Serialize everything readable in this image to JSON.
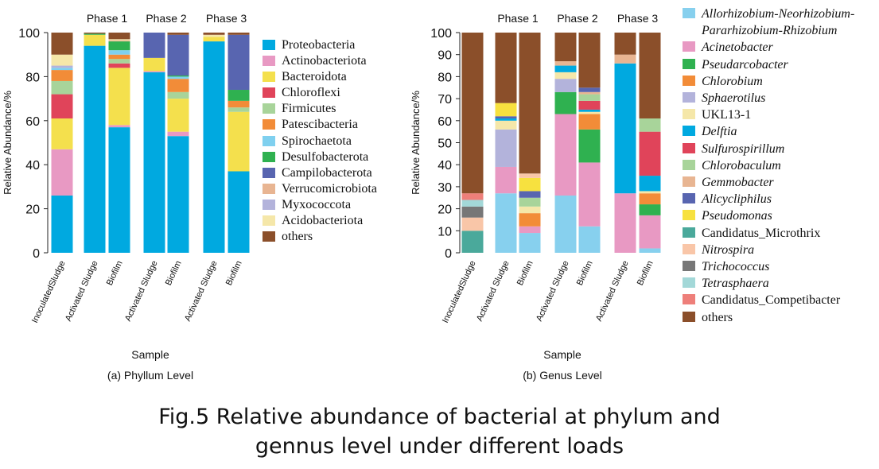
{
  "chart_data": [
    {
      "type": "stacked_bar",
      "subtitle": "(a) Phyllum Level",
      "xlabel": "Sample",
      "ylabel": "Relative Abundance/%",
      "phases": [
        "Phase 1",
        "Phase 2",
        "Phase 3"
      ],
      "categories": [
        "InoculatedSludge",
        "Activated Sludge",
        "Biofilm",
        "Activated Sludge",
        "Biofilm",
        "Activated Sludge",
        "Biofilm"
      ],
      "ylim": [
        0,
        100
      ],
      "yticks": [
        0,
        20,
        40,
        60,
        80,
        100
      ],
      "series": [
        {
          "name": "Proteobacteria",
          "color": "#00a9e0",
          "values": [
            26,
            94,
            57,
            82,
            53,
            96,
            37
          ]
        },
        {
          "name": "Actinobacteriota",
          "color": "#e899c3",
          "values": [
            21,
            0,
            1,
            0.5,
            2,
            0,
            0
          ]
        },
        {
          "name": "Bacteroidota",
          "color": "#f4e04d",
          "values": [
            14,
            5,
            26,
            6,
            15,
            2,
            27
          ]
        },
        {
          "name": "Chloroflexi",
          "color": "#e0445a",
          "values": [
            11,
            0,
            2,
            0,
            0,
            0,
            0
          ]
        },
        {
          "name": "Firmicutes",
          "color": "#a8d49a",
          "values": [
            6,
            0,
            2,
            0,
            3,
            0,
            2
          ]
        },
        {
          "name": "Patescibacteria",
          "color": "#f28c38",
          "values": [
            5,
            0,
            2,
            0,
            6,
            0,
            3
          ]
        },
        {
          "name": "Spirochaetota",
          "color": "#7fd0ef",
          "values": [
            1,
            0,
            2,
            0,
            1,
            0,
            0
          ]
        },
        {
          "name": "Desulfobacterota",
          "color": "#2fb150",
          "values": [
            0,
            0.5,
            4,
            0,
            0.5,
            0,
            5
          ]
        },
        {
          "name": "Campilobacterota",
          "color": "#5865b0",
          "values": [
            0,
            0,
            0,
            11.5,
            18.5,
            0,
            25
          ]
        },
        {
          "name": "Verrucomicrobiota",
          "color": "#e8b592",
          "values": [
            0,
            0,
            0.5,
            0,
            0,
            0,
            0
          ]
        },
        {
          "name": "Myxococcota",
          "color": "#b3b3db",
          "values": [
            1,
            0,
            0,
            0,
            0,
            0,
            0
          ]
        },
        {
          "name": "Acidobacteriota",
          "color": "#f5e7a9",
          "values": [
            5,
            0,
            0.5,
            0,
            0,
            1,
            0
          ]
        },
        {
          "name": "others",
          "color": "#8b4f2a",
          "values": [
            10,
            0.5,
            3,
            0,
            1,
            1,
            1
          ]
        }
      ]
    },
    {
      "type": "stacked_bar",
      "subtitle": "(b) Genus Level",
      "xlabel": "Sample",
      "ylabel": "Relative Abundance/%",
      "phases": [
        "Phase 1",
        "Phase 2",
        "Phase 3"
      ],
      "categories": [
        "InoculatedSludge",
        "Activated Sludge",
        "Biofilm",
        "Activated Sludge",
        "Biofilm",
        "Activated Sludge",
        "Biofilm"
      ],
      "ylim": [
        0,
        100
      ],
      "yticks": [
        0,
        10,
        20,
        30,
        40,
        50,
        60,
        70,
        80,
        90,
        100
      ],
      "series": [
        {
          "name": "Allorhizobium-Neorhizobium-Pararhizobium-Rhizobium",
          "italic": true,
          "color": "#87d0ee",
          "values": [
            0,
            27,
            9,
            26,
            12,
            0,
            2
          ]
        },
        {
          "name": "Acinetobacter",
          "italic": true,
          "color": "#e899c3",
          "values": [
            0,
            12,
            3,
            37,
            29,
            27,
            15
          ]
        },
        {
          "name": "Pseudarcobacter",
          "italic": true,
          "color": "#2fb150",
          "values": [
            0,
            0,
            0,
            10,
            15,
            0,
            5
          ]
        },
        {
          "name": "Chlorobium",
          "italic": true,
          "color": "#f28c38",
          "values": [
            0,
            0,
            6,
            0,
            7,
            0,
            5
          ]
        },
        {
          "name": "Sphaerotilus",
          "italic": true,
          "color": "#b3b3db",
          "values": [
            0,
            17,
            0,
            6,
            0,
            0,
            0
          ]
        },
        {
          "name": "UKL13-1",
          "italic": false,
          "color": "#f5e7a9",
          "values": [
            0,
            4,
            3,
            3,
            1,
            0,
            1
          ]
        },
        {
          "name": "Delftia",
          "italic": true,
          "color": "#00a9e0",
          "values": [
            0,
            1,
            0,
            3,
            1,
            59,
            7
          ]
        },
        {
          "name": "Sulfurospirillum",
          "italic": true,
          "color": "#e0445a",
          "values": [
            0,
            0,
            0,
            0,
            4,
            0,
            20
          ]
        },
        {
          "name": "Chlorobaculum",
          "italic": true,
          "color": "#a8d49a",
          "values": [
            0,
            0,
            4,
            0,
            3,
            0,
            6
          ]
        },
        {
          "name": "Gemmobacter",
          "italic": true,
          "color": "#e8b592",
          "values": [
            0,
            0,
            0,
            2,
            1,
            4,
            0
          ]
        },
        {
          "name": "Alicycliphilus",
          "italic": true,
          "color": "#5865b0",
          "values": [
            0,
            1,
            3,
            0,
            2,
            0,
            0
          ]
        },
        {
          "name": "Pseudomonas",
          "italic": true,
          "color": "#f7e13f",
          "values": [
            0,
            6,
            6,
            0,
            0,
            0,
            0
          ]
        },
        {
          "name": "Candidatus_Microthrix",
          "italic": false,
          "color": "#4aa99b",
          "values": [
            10,
            0,
            0,
            0,
            0,
            0,
            0
          ]
        },
        {
          "name": "Nitrospira",
          "italic": true,
          "color": "#f9c6a8",
          "values": [
            6,
            0,
            2,
            0,
            0,
            0,
            0
          ]
        },
        {
          "name": "Trichococcus",
          "italic": true,
          "color": "#777777",
          "values": [
            5,
            0,
            0,
            0,
            0,
            0,
            0
          ]
        },
        {
          "name": "Tetrasphaera",
          "italic": true,
          "color": "#a3d8d8",
          "values": [
            3,
            0,
            0,
            0,
            0,
            0,
            0
          ]
        },
        {
          "name": "Candidatus_Competibacter",
          "italic": false,
          "color": "#ee7f7a",
          "values": [
            3,
            0,
            0,
            0,
            0,
            0,
            0
          ]
        },
        {
          "name": "others",
          "italic": false,
          "color": "#8b4f2a",
          "values": [
            73,
            32,
            64,
            13,
            25,
            10,
            39
          ]
        }
      ]
    }
  ],
  "caption": [
    "Fig.5 Relative abundance of bacterial at phylum and",
    "gennus level under different loads"
  ]
}
